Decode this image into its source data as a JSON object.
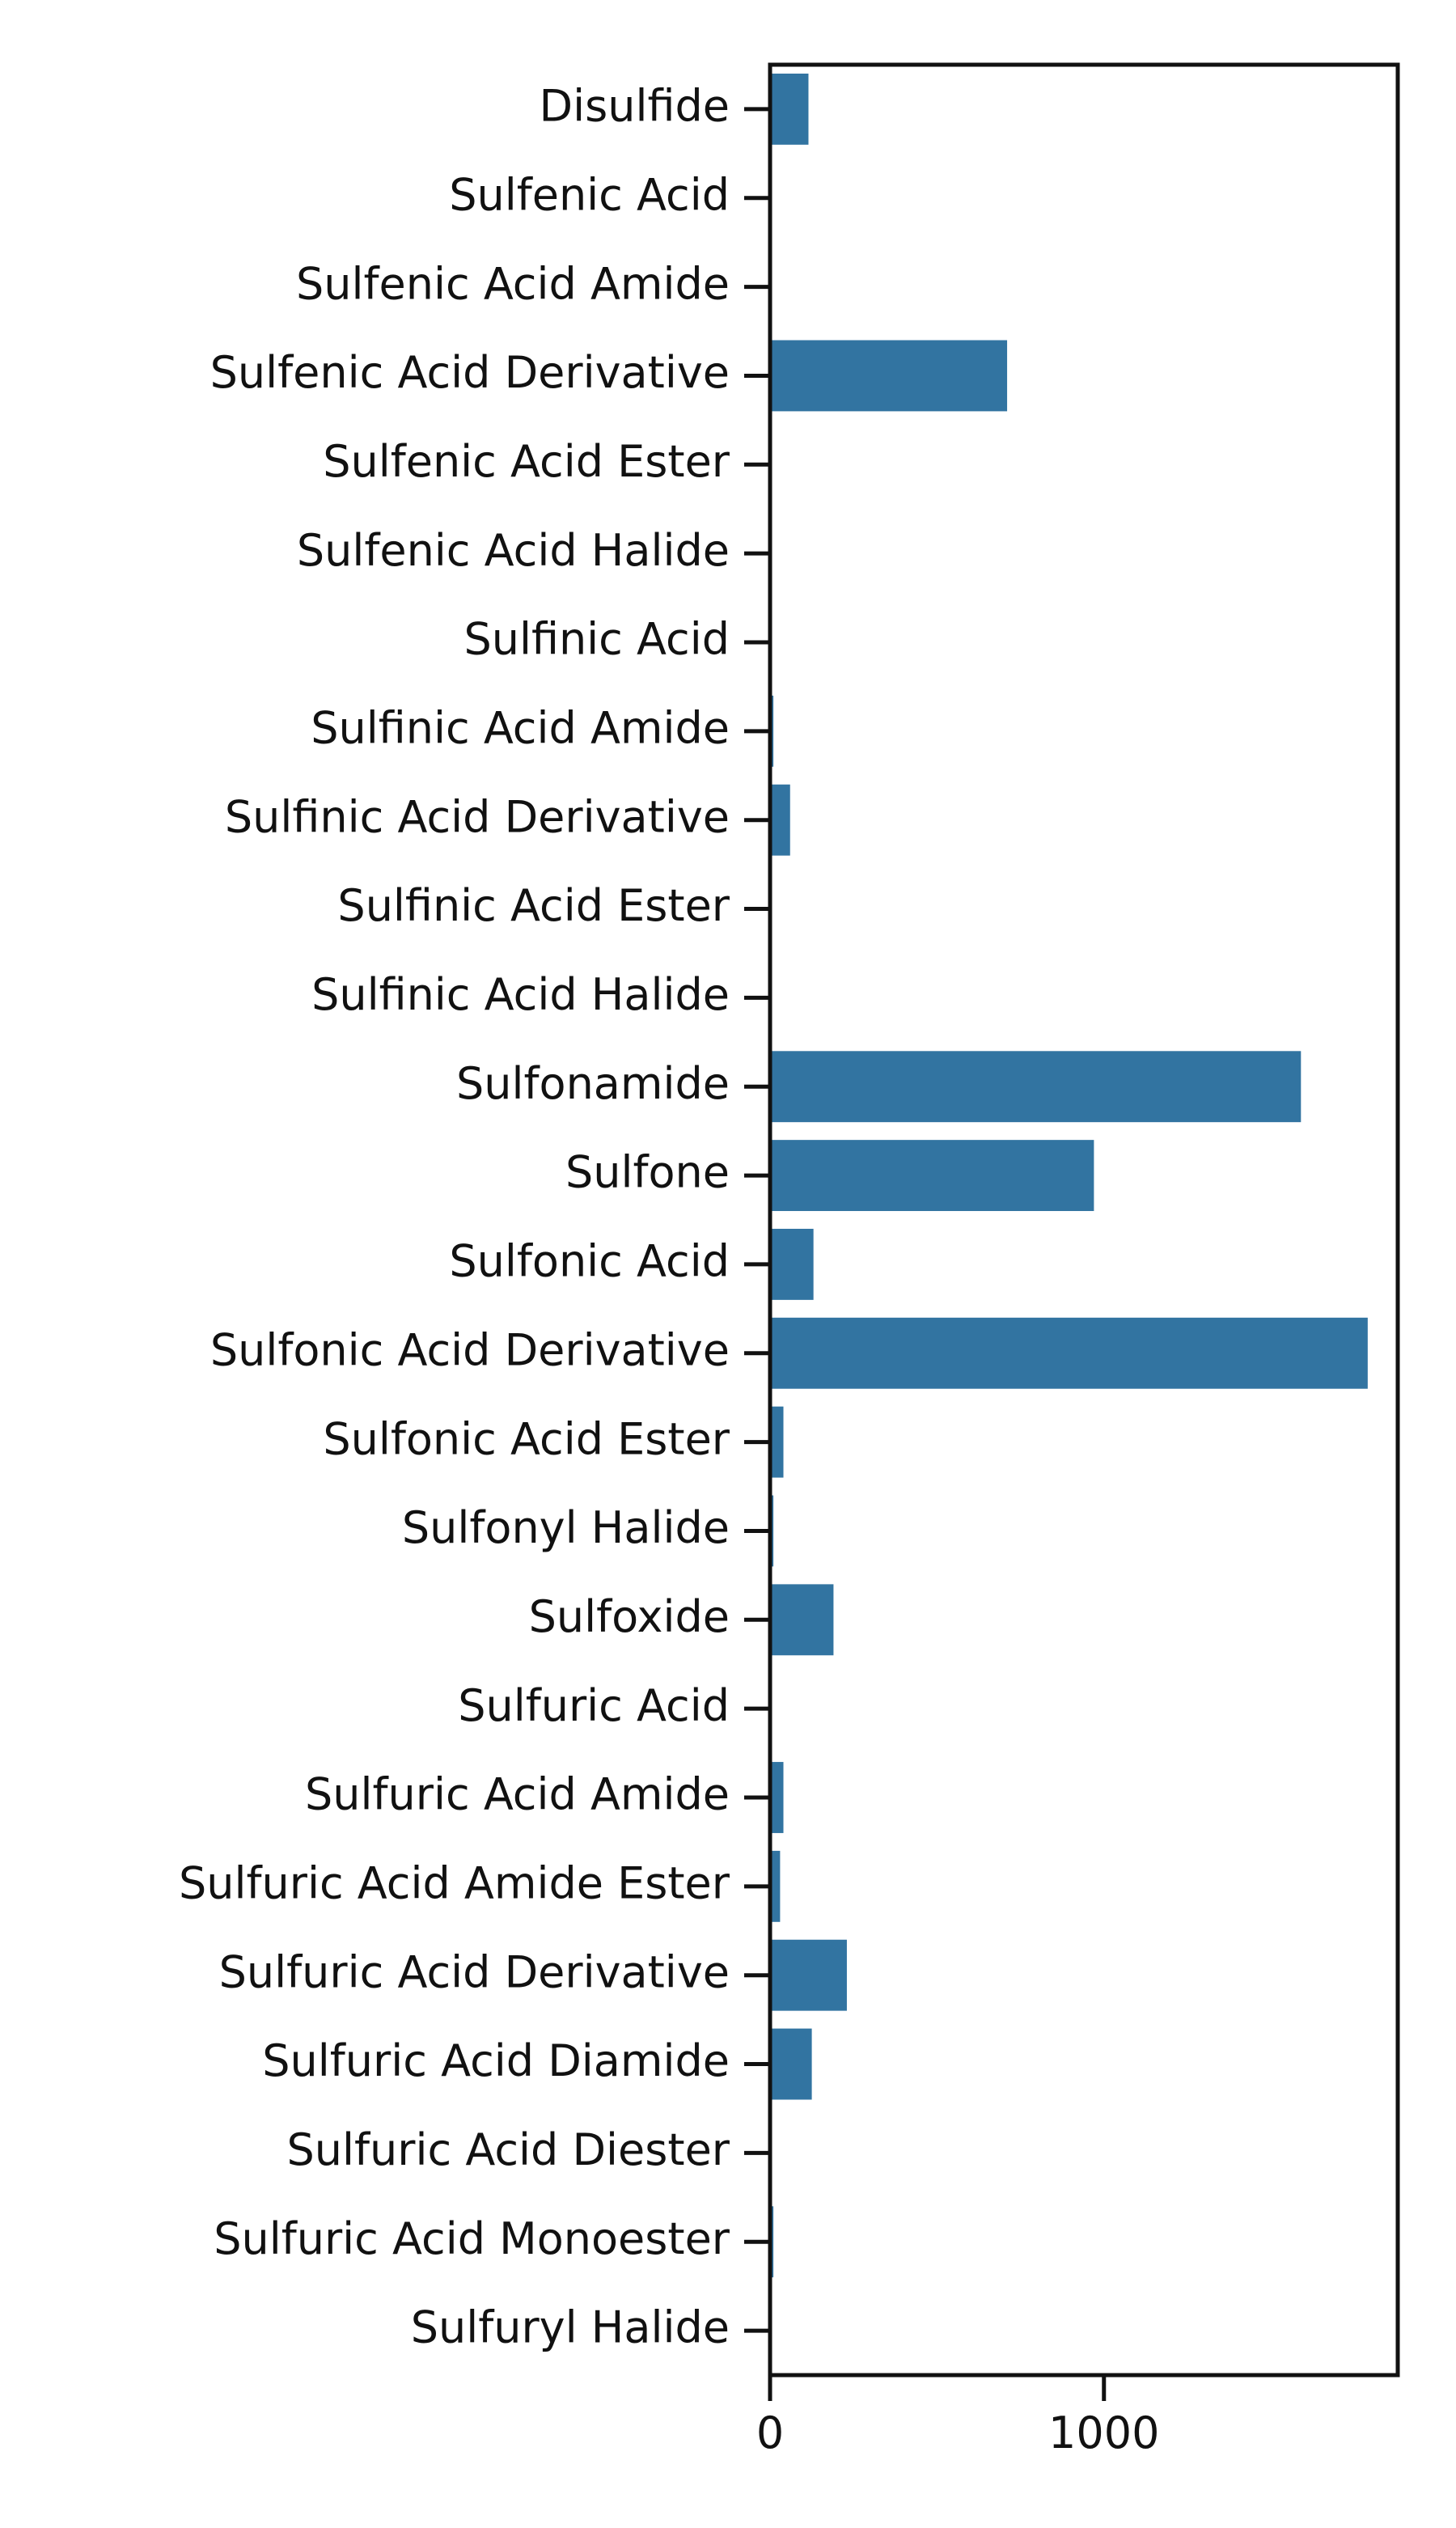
{
  "chart_data": {
    "type": "bar",
    "orientation": "horizontal",
    "title": "",
    "xlabel": "",
    "ylabel": "",
    "categories": [
      "Disulfide",
      "Sulfenic Acid",
      "Sulfenic Acid Amide",
      "Sulfenic Acid Derivative",
      "Sulfenic Acid Ester",
      "Sulfenic Acid Halide",
      "Sulfinic Acid",
      "Sulfinic Acid Amide",
      "Sulfinic Acid Derivative",
      "Sulfinic Acid Ester",
      "Sulfinic Acid Halide",
      "Sulfonamide",
      "Sulfone",
      "Sulfonic Acid",
      "Sulfonic Acid Derivative",
      "Sulfonic Acid Ester",
      "Sulfonyl Halide",
      "Sulfoxide",
      "Sulfuric Acid",
      "Sulfuric Acid Amide",
      "Sulfuric Acid Amide Ester",
      "Sulfuric Acid Derivative",
      "Sulfuric Acid Diamide",
      "Sulfuric Acid Diester",
      "Sulfuric Acid Monoester",
      "Sulfuryl Halide"
    ],
    "values": [
      115,
      0,
      0,
      710,
      0,
      0,
      0,
      10,
      60,
      0,
      0,
      1590,
      970,
      130,
      1790,
      40,
      10,
      190,
      0,
      40,
      30,
      230,
      125,
      0,
      10,
      0
    ],
    "xlim": [
      0,
      1880
    ],
    "xticks": [
      0,
      1000
    ],
    "xtick_labels": [
      "0",
      "1000"
    ],
    "grid": false,
    "bar_color": "#3274a1",
    "axis_color": "#111111"
  }
}
